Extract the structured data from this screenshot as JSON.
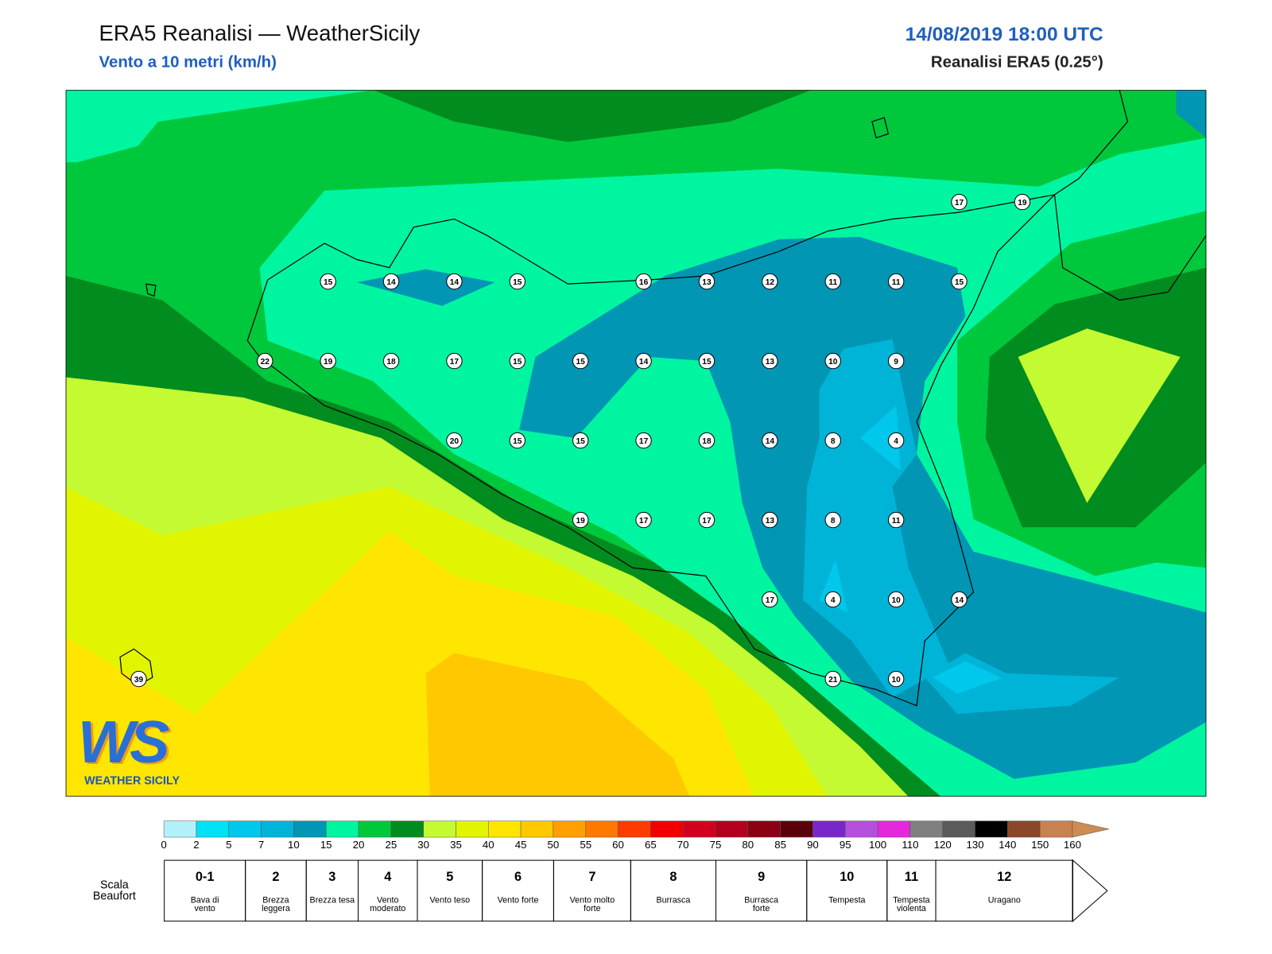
{
  "header": {
    "title": "ERA5 Reanalisi — WeatherSicily",
    "subtitle": "Vento a 10 metri (km/h)",
    "datetime": "14/08/2019 18:00 UTC",
    "source": "Reanalisi ERA5 (0.25°)"
  },
  "wind_grid": [
    [
      null,
      null,
      null,
      null,
      null,
      null,
      null,
      null,
      null,
      null,
      null,
      null,
      null,
      17,
      19
    ],
    [
      null,
      null,
      null,
      15,
      14,
      14,
      15,
      null,
      16,
      13,
      12,
      11,
      11,
      15,
      null
    ],
    [
      null,
      null,
      22,
      19,
      18,
      17,
      15,
      15,
      14,
      15,
      13,
      10,
      9,
      null,
      null
    ],
    [
      null,
      null,
      null,
      null,
      null,
      20,
      15,
      15,
      17,
      18,
      14,
      8,
      4,
      null,
      null
    ],
    [
      null,
      null,
      null,
      null,
      null,
      null,
      null,
      19,
      17,
      17,
      13,
      8,
      11,
      null,
      null
    ],
    [
      null,
      null,
      null,
      null,
      null,
      null,
      null,
      null,
      null,
      null,
      17,
      4,
      10,
      14,
      null
    ],
    [
      39,
      null,
      null,
      null,
      null,
      null,
      null,
      null,
      null,
      null,
      null,
      21,
      10,
      null,
      null
    ]
  ],
  "colorbar": {
    "ticks": [
      0,
      2,
      5,
      7,
      10,
      15,
      20,
      25,
      30,
      35,
      40,
      45,
      50,
      55,
      60,
      65,
      70,
      75,
      80,
      85,
      90,
      95,
      100,
      110,
      120,
      130,
      140,
      150,
      160
    ],
    "colors": [
      "#b3f1fa",
      "#00e1f5",
      "#00c8ec",
      "#00b4d8",
      "#0096b4",
      "#00f5a0",
      "#00c83c",
      "#008c1e",
      "#c4fa32",
      "#e1f500",
      "#ffe600",
      "#ffc800",
      "#ffa000",
      "#ff7800",
      "#ff3c00",
      "#f00000",
      "#d2001e",
      "#b4001e",
      "#8c0014",
      "#5a000a",
      "#7828c8",
      "#b450dc",
      "#e628dc",
      "#808080",
      "#5a5a5a",
      "#000000",
      "#8c4628",
      "#c88250"
    ],
    "overflow_color": "#cd8c50"
  },
  "beaufort": {
    "label": "Scala Beaufort",
    "forces": [
      {
        "force": "0-1",
        "description": "Bava di vento"
      },
      {
        "force": "2",
        "description": "Brezza leggera"
      },
      {
        "force": "3",
        "description": "Brezza tesa"
      },
      {
        "force": "4",
        "description": "Vento moderato"
      },
      {
        "force": "5",
        "description": "Vento teso"
      },
      {
        "force": "6",
        "description": "Vento forte"
      },
      {
        "force": "7",
        "description": "Vento molto forte"
      },
      {
        "force": "8",
        "description": "Burrasca"
      },
      {
        "force": "9",
        "description": "Burrasca forte"
      },
      {
        "force": "10",
        "description": "Tempesta"
      },
      {
        "force": "11",
        "description": "Tempesta violenta"
      },
      {
        "force": "12",
        "description": "Uragano"
      }
    ]
  },
  "logo": {
    "mark": "WS",
    "name": "WEATHER SICILY"
  }
}
